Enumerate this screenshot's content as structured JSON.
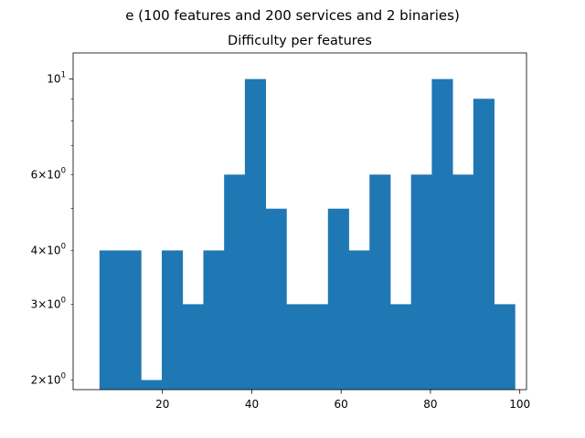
{
  "figure": {
    "suptitle": "e (100 features and 200 services and 2 binaries)"
  },
  "chart_data": {
    "type": "bar",
    "title": "Difficulty per features",
    "xlabel": "",
    "ylabel": "",
    "yscale": "log",
    "bar_color": "#1f77b4",
    "xlim": [
      0,
      101.5
    ],
    "ylim": [
      1.9,
      11.5
    ],
    "bin_edges": [
      5.9,
      10.55,
      15.2,
      19.85,
      24.5,
      29.15,
      33.8,
      38.45,
      43.1,
      47.75,
      52.4,
      57.05,
      61.7,
      66.35,
      71.0,
      75.65,
      80.3,
      84.95,
      89.6,
      94.25,
      98.9
    ],
    "values": [
      4,
      4,
      2,
      4,
      3,
      4,
      6,
      10,
      5,
      3,
      3,
      5,
      4,
      6,
      3,
      6,
      10,
      6,
      9,
      3
    ],
    "xticks": [
      20,
      40,
      60,
      80,
      100
    ],
    "xtick_labels": [
      "20",
      "40",
      "60",
      "80",
      "100"
    ],
    "yticks_major": [
      10
    ],
    "ytick_labels_major": [
      {
        "base": "10",
        "exp": "1"
      }
    ],
    "yticks_minor": [
      2,
      3,
      4,
      6
    ],
    "ytick_labels_minor": [
      {
        "coef": "2",
        "times": "×",
        "base": "10",
        "exp": "0"
      },
      {
        "coef": "3",
        "times": "×",
        "base": "10",
        "exp": "0"
      },
      {
        "coef": "4",
        "times": "×",
        "base": "10",
        "exp": "0"
      },
      {
        "coef": "6",
        "times": "×",
        "base": "10",
        "exp": "0"
      }
    ],
    "yticks_minor_unlabeled": [
      5,
      7,
      8,
      9
    ],
    "grid": false,
    "legend": "none"
  }
}
